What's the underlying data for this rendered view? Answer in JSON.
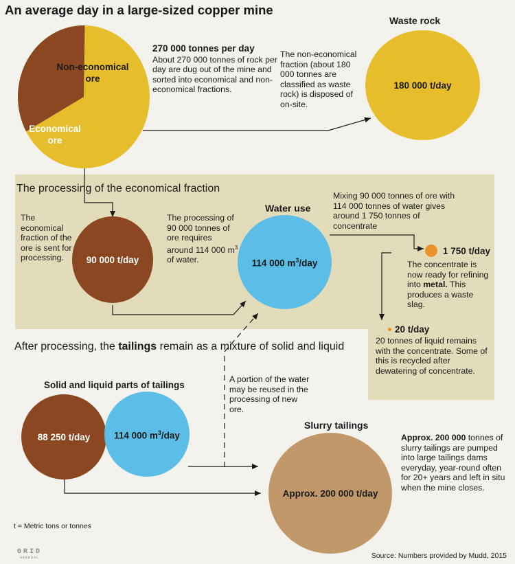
{
  "title": "An average day in a large-sized copper mine",
  "colors": {
    "background": "#f3f2ec",
    "panel": "#e2dcbb",
    "ore_yellow": "#e6bd2b",
    "copper_brown": "#8b4722",
    "water_blue": "#5cbde6",
    "slurry_tan": "#c1986a",
    "concentrate_orange": "#e8922e"
  },
  "pie": {
    "non_economical_label": "Non-economical ore",
    "economical_label": "Economical ore",
    "economical_share": 0.333
  },
  "intro": {
    "heading": "270 000 tonnes per day",
    "body": "About 270 000 tonnes of rock per day are dug out of the mine and sorted into economical and non-economical fractions."
  },
  "waste": {
    "heading": "Waste rock",
    "text": "The non-economical fraction (about 180 000 tonnes are classified as waste rock) is disposed of on-site.",
    "value": "180 000 t/day"
  },
  "processing": {
    "heading": "The processing of the economical fraction",
    "sent_text": "The economical fraction of the ore is sent for processing.",
    "ore_value": "90 000 t/day",
    "requires_text_pre": "The processing of 90 000 tonnes of ore requires around 114 000 m",
    "requires_sup": "3",
    "requires_post": " of water.",
    "water_heading": "Water use",
    "water_value_pre": "114 000 m",
    "water_value_sup": "3",
    "water_value_post": "/day",
    "mixing_text": "Mixing 90 000 tonnes of ore with 114 000 tonnes of water gives around 1 750 tonnes of concentrate",
    "concentrate_value": "1 750 t/day",
    "concentrate_text_pre": "The concentrate is  now ready for refining into ",
    "concentrate_text_bold": "metal.",
    "concentrate_text_post": " This produces a waste slag.",
    "liquid_value": "20 t/day",
    "liquid_text": "20 tonnes of liquid remains with the concentrate. Some of this is recycled after dewatering of concentrate."
  },
  "after": {
    "heading_pre": "After processing, the ",
    "heading_bold": "tailings",
    "heading_post": " remain as a mixture of solid and liquid",
    "parts_heading": "Solid and liquid parts of tailings",
    "solid_value": "88 250 t/day",
    "liquid_value_pre": "114 000 m",
    "liquid_value_sup": "3",
    "liquid_value_post": "/day",
    "reuse_text": "A portion of the water may be reused in the processing of new ore.",
    "slurry_heading": "Slurry tailings",
    "slurry_value": "Approx. 200 000 t/day",
    "slurry_text_bold": "Approx. 200 000",
    "slurry_text_rest": " tonnes of slurry tailings are pumped into large tailings dams everyday, year-round often for 20+ years and left in situ when the mine closes."
  },
  "footnote": "t = Metric tons or tonnes",
  "logo": {
    "text": "GRID",
    "subtext": "ARENDAL"
  },
  "source": "Source: Numbers provided by Mudd, 2015"
}
